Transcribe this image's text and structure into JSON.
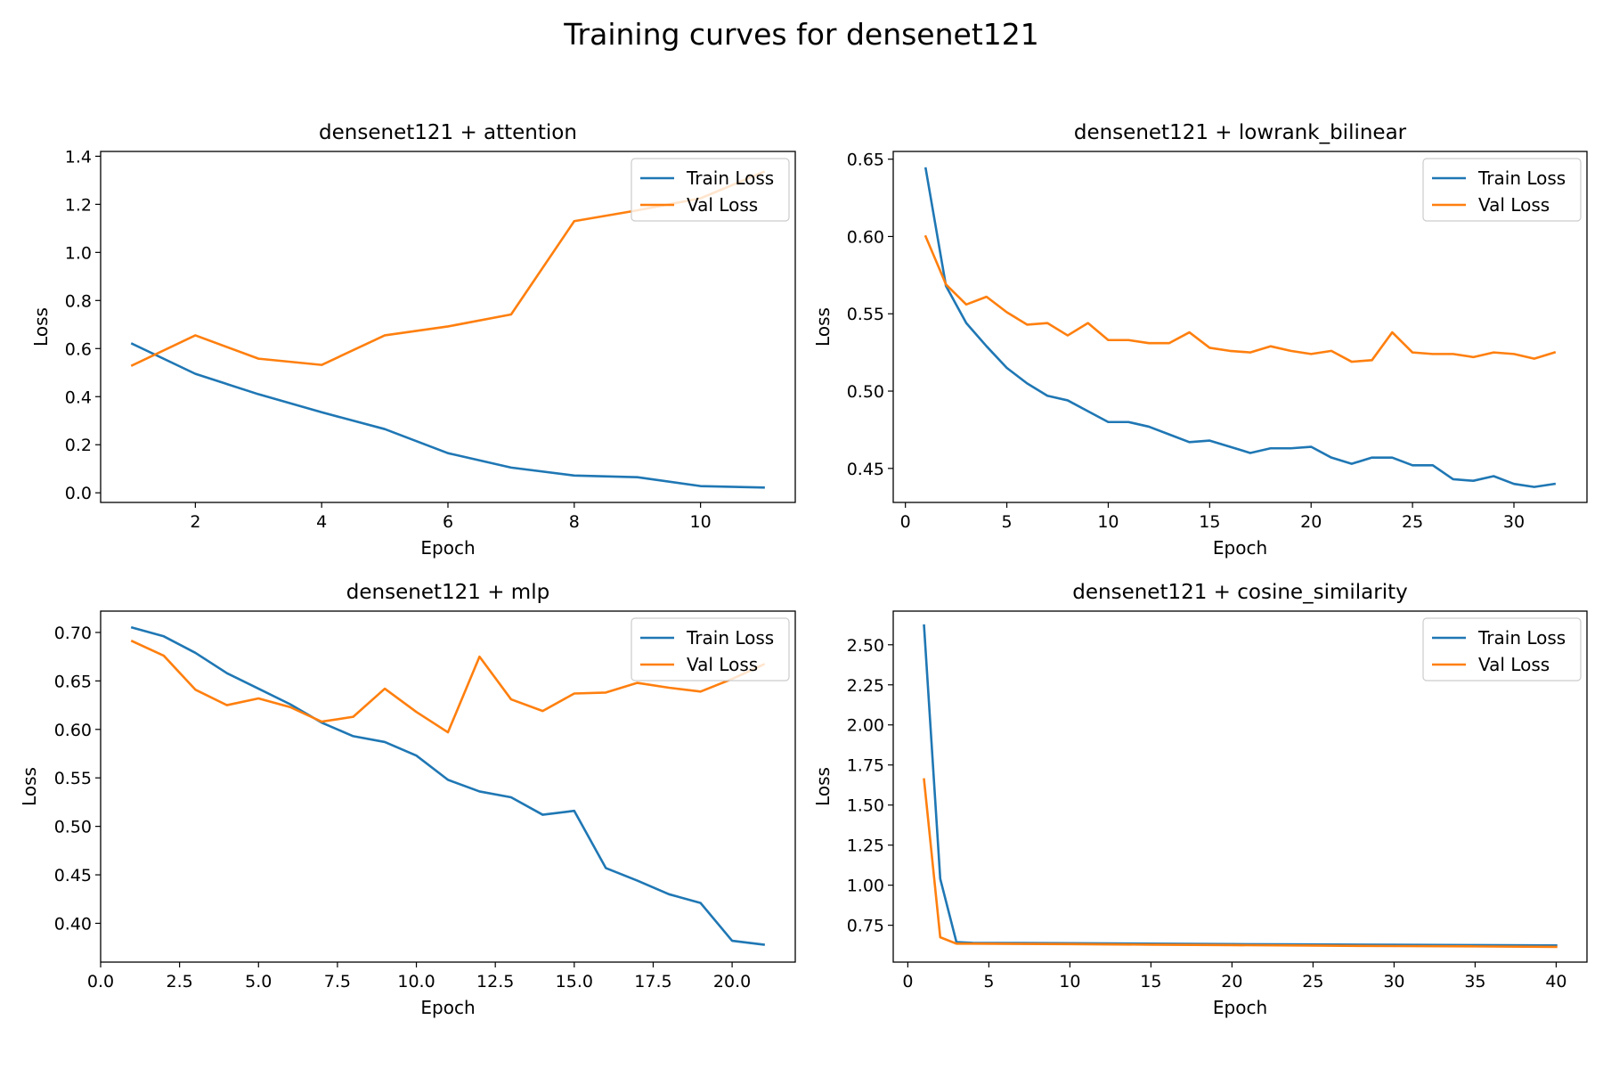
{
  "figure": {
    "title": "Training curves for densenet121"
  },
  "colors": {
    "train": "#1f77b4",
    "val": "#ff7f0e"
  },
  "chart_data": [
    {
      "type": "line",
      "title": "densenet121 + attention",
      "xlabel": "Epoch",
      "ylabel": "Loss",
      "xlim": [
        0.5,
        11.5
      ],
      "ylim": [
        -0.04,
        1.42
      ],
      "xticks": [
        2,
        4,
        6,
        8,
        10
      ],
      "xtick_labels": [
        "2",
        "4",
        "6",
        "8",
        "10"
      ],
      "yticks": [
        0.0,
        0.2,
        0.4,
        0.6,
        0.8,
        1.0,
        1.2,
        1.4
      ],
      "ytick_labels": [
        "0.0",
        "0.2",
        "0.4",
        "0.6",
        "0.8",
        "1.0",
        "1.2",
        "1.4"
      ],
      "legend": "upper right",
      "x": [
        1,
        2,
        3,
        4,
        5,
        6,
        7,
        8,
        9,
        10,
        11
      ],
      "series": [
        {
          "name": "Train Loss",
          "values": [
            0.62,
            0.495,
            0.41,
            0.335,
            0.265,
            0.165,
            0.105,
            0.072,
            0.065,
            0.028,
            0.022
          ]
        },
        {
          "name": "Val Loss",
          "values": [
            0.53,
            0.655,
            0.558,
            0.532,
            0.655,
            0.692,
            0.742,
            1.13,
            1.175,
            1.225,
            1.335
          ]
        }
      ]
    },
    {
      "type": "line",
      "title": "densenet121 + lowrank_bilinear",
      "xlabel": "Epoch",
      "ylabel": "Loss",
      "xlim": [
        -0.6,
        33.6
      ],
      "ylim": [
        0.428,
        0.655
      ],
      "xticks": [
        0,
        5,
        10,
        15,
        20,
        25,
        30
      ],
      "xtick_labels": [
        "0",
        "5",
        "10",
        "15",
        "20",
        "25",
        "30"
      ],
      "yticks": [
        0.45,
        0.5,
        0.55,
        0.6,
        0.65
      ],
      "ytick_labels": [
        "0.45",
        "0.50",
        "0.55",
        "0.60",
        "0.65"
      ],
      "legend": "upper right",
      "x": [
        1,
        2,
        3,
        4,
        5,
        6,
        7,
        8,
        9,
        10,
        11,
        12,
        13,
        14,
        15,
        16,
        17,
        18,
        19,
        20,
        21,
        22,
        23,
        24,
        25,
        26,
        27,
        28,
        29,
        30,
        31,
        32
      ],
      "series": [
        {
          "name": "Train Loss",
          "values": [
            0.644,
            0.568,
            0.544,
            0.529,
            0.515,
            0.505,
            0.497,
            0.494,
            0.487,
            0.48,
            0.48,
            0.477,
            0.472,
            0.467,
            0.468,
            0.464,
            0.46,
            0.463,
            0.463,
            0.464,
            0.457,
            0.453,
            0.457,
            0.457,
            0.452,
            0.452,
            0.443,
            0.442,
            0.445,
            0.44,
            0.438,
            0.44
          ]
        },
        {
          "name": "Val Loss",
          "values": [
            0.6,
            0.569,
            0.556,
            0.561,
            0.551,
            0.543,
            0.544,
            0.536,
            0.544,
            0.533,
            0.533,
            0.531,
            0.531,
            0.538,
            0.528,
            0.526,
            0.525,
            0.529,
            0.526,
            0.524,
            0.526,
            0.519,
            0.52,
            0.538,
            0.525,
            0.524,
            0.524,
            0.522,
            0.525,
            0.524,
            0.521,
            0.525
          ]
        }
      ]
    },
    {
      "type": "line",
      "title": "densenet121 + mlp",
      "xlabel": "Epoch",
      "ylabel": "Loss",
      "xlim": [
        0,
        22.0
      ],
      "ylim": [
        0.36,
        0.722
      ],
      "xticks": [
        0,
        2.5,
        5,
        7.5,
        10,
        12.5,
        15,
        17.5,
        20
      ],
      "xtick_labels": [
        "0.0",
        "2.5",
        "5.0",
        "7.5",
        "10.0",
        "12.5",
        "15.0",
        "17.5",
        "20.0"
      ],
      "yticks": [
        0.4,
        0.45,
        0.5,
        0.55,
        0.6,
        0.65,
        0.7
      ],
      "ytick_labels": [
        "0.40",
        "0.45",
        "0.50",
        "0.55",
        "0.60",
        "0.65",
        "0.70"
      ],
      "legend": "upper right",
      "x": [
        1,
        2,
        3,
        4,
        5,
        6,
        7,
        8,
        9,
        10,
        11,
        12,
        13,
        14,
        15,
        16,
        17,
        18,
        19,
        20,
        21
      ],
      "series": [
        {
          "name": "Train Loss",
          "values": [
            0.705,
            0.696,
            0.679,
            0.658,
            0.642,
            0.626,
            0.607,
            0.593,
            0.587,
            0.573,
            0.548,
            0.536,
            0.53,
            0.512,
            0.516,
            0.457,
            0.444,
            0.43,
            0.421,
            0.382,
            0.378
          ]
        },
        {
          "name": "Val Loss",
          "values": [
            0.691,
            0.676,
            0.641,
            0.625,
            0.632,
            0.623,
            0.608,
            0.613,
            0.642,
            0.618,
            0.597,
            0.675,
            0.631,
            0.619,
            0.637,
            0.638,
            0.648,
            0.643,
            0.639,
            0.652,
            0.667
          ]
        }
      ]
    },
    {
      "type": "line",
      "title": "densenet121 + cosine_similarity",
      "xlabel": "Epoch",
      "ylabel": "Loss",
      "xlim": [
        -0.9,
        41.9
      ],
      "ylim": [
        0.52,
        2.71
      ],
      "xticks": [
        0,
        5,
        10,
        15,
        20,
        25,
        30,
        35,
        40
      ],
      "xtick_labels": [
        "0",
        "5",
        "10",
        "15",
        "20",
        "25",
        "30",
        "35",
        "40"
      ],
      "yticks": [
        0.75,
        1.0,
        1.25,
        1.5,
        1.75,
        2.0,
        2.25,
        2.5
      ],
      "ytick_labels": [
        "0.75",
        "1.00",
        "1.25",
        "1.50",
        "1.75",
        "2.00",
        "2.25",
        "2.50"
      ],
      "legend": "upper right",
      "x": [
        1,
        2,
        3,
        4,
        10,
        15,
        20,
        25,
        30,
        35,
        40
      ],
      "series": [
        {
          "name": "Train Loss",
          "values": [
            2.62,
            1.04,
            0.645,
            0.64,
            0.638,
            0.635,
            0.632,
            0.63,
            0.628,
            0.626,
            0.624
          ]
        },
        {
          "name": "Val Loss",
          "values": [
            1.66,
            0.675,
            0.635,
            0.635,
            0.632,
            0.629,
            0.626,
            0.623,
            0.62,
            0.618,
            0.615
          ]
        }
      ]
    }
  ]
}
